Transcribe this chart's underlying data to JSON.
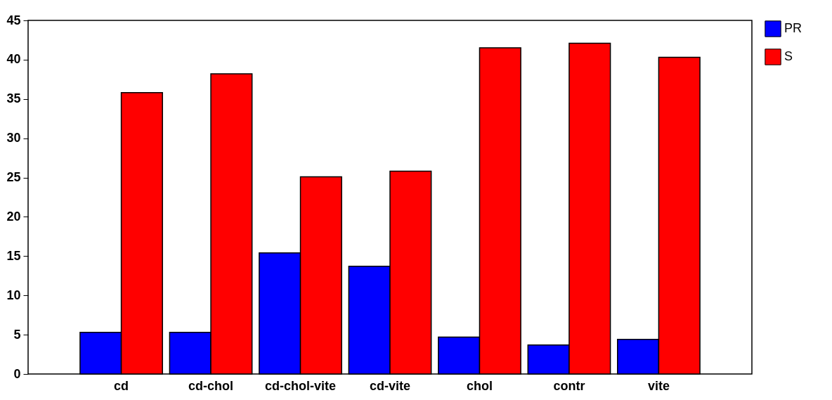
{
  "chart_data": {
    "type": "bar",
    "categories": [
      "cd",
      "cd-chol",
      "cd-chol-vite",
      "cd-vite",
      "chol",
      "contr",
      "vite"
    ],
    "series": [
      {
        "name": "PR",
        "color": "#0000ff",
        "values": [
          5.3,
          5.3,
          15.4,
          13.7,
          4.7,
          3.7,
          4.4
        ]
      },
      {
        "name": "S",
        "color": "#ff0000",
        "values": [
          35.8,
          38.2,
          25.1,
          25.8,
          41.5,
          42.1,
          40.3
        ]
      }
    ],
    "ylim": [
      0,
      45
    ],
    "yticks": [
      0,
      5,
      10,
      15,
      20,
      25,
      30,
      35,
      40,
      45
    ],
    "grid": false,
    "legend": "right"
  }
}
